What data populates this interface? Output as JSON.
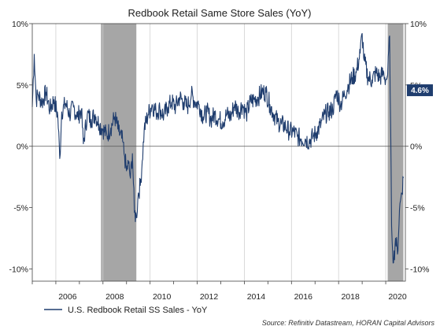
{
  "chart_data": {
    "type": "line",
    "title": "Redbook Retail Same Store Sales (YoY)",
    "y_unit": "%",
    "ylim": [
      -11,
      10
    ],
    "xlim": [
      "2005-01",
      "2020-11"
    ],
    "y_ticks": [
      10,
      5,
      0,
      -5,
      -10
    ],
    "y_tick_labels": [
      "10%",
      "5%",
      "0%",
      "-5%",
      "-10%"
    ],
    "x_ticks": [
      2006,
      2008,
      2010,
      2012,
      2014,
      2016,
      2018,
      2020
    ],
    "x_tick_labels": [
      "2006",
      "2008",
      "2010",
      "2012",
      "2014",
      "2016",
      "2018",
      "2020"
    ],
    "grid": "vertical",
    "recessions": [
      {
        "start": "2007-12",
        "end": "2009-06"
      },
      {
        "start": "2020-02",
        "end": "2020-10"
      }
    ],
    "callout": {
      "label": "4.6%",
      "value": 4.6
    },
    "legend_position": "bottom-left",
    "series": [
      {
        "name": "U.S. Redbook Retail SS Sales - YoY",
        "color": "#1f3d6e",
        "points": [
          [
            "2005-01",
            3.2
          ],
          [
            "2005-02",
            7.5
          ],
          [
            "2005-03",
            3.8
          ],
          [
            "2005-04",
            4.2
          ],
          [
            "2005-06",
            3.6
          ],
          [
            "2005-08",
            4.4
          ],
          [
            "2005-10",
            3.0
          ],
          [
            "2005-12",
            3.8
          ],
          [
            "2006-02",
            2.5
          ],
          [
            "2006-03",
            -1.0
          ],
          [
            "2006-04",
            2.8
          ],
          [
            "2006-06",
            3.5
          ],
          [
            "2006-08",
            2.6
          ],
          [
            "2006-10",
            3.2
          ],
          [
            "2006-12",
            2.4
          ],
          [
            "2007-02",
            3.0
          ],
          [
            "2007-03",
            0.2
          ],
          [
            "2007-05",
            2.6
          ],
          [
            "2007-07",
            2.2
          ],
          [
            "2007-09",
            2.6
          ],
          [
            "2007-11",
            1.8
          ],
          [
            "2008-01",
            1.4
          ],
          [
            "2008-03",
            0.9
          ],
          [
            "2008-05",
            1.5
          ],
          [
            "2008-07",
            2.4
          ],
          [
            "2008-09",
            1.2
          ],
          [
            "2008-11",
            0.4
          ],
          [
            "2008-12",
            -0.8
          ],
          [
            "2009-01",
            -2.0
          ],
          [
            "2009-02",
            -1.4
          ],
          [
            "2009-03",
            -2.6
          ],
          [
            "2009-04",
            -0.6
          ],
          [
            "2009-05",
            -5.4
          ],
          [
            "2009-06",
            -5.8
          ],
          [
            "2009-07",
            -3.8
          ],
          [
            "2009-08",
            -3.2
          ],
          [
            "2009-09",
            -1.2
          ],
          [
            "2009-10",
            1.4
          ],
          [
            "2009-12",
            2.6
          ],
          [
            "2010-02",
            3.4
          ],
          [
            "2010-04",
            2.8
          ],
          [
            "2010-06",
            3.0
          ],
          [
            "2010-08",
            2.5
          ],
          [
            "2010-10",
            3.2
          ],
          [
            "2010-12",
            3.6
          ],
          [
            "2011-02",
            3.2
          ],
          [
            "2011-04",
            4.0
          ],
          [
            "2011-06",
            3.6
          ],
          [
            "2011-08",
            3.2
          ],
          [
            "2011-10",
            4.2
          ],
          [
            "2011-12",
            3.6
          ],
          [
            "2012-02",
            3.4
          ],
          [
            "2012-04",
            2.4
          ],
          [
            "2012-06",
            2.8
          ],
          [
            "2012-08",
            2.2
          ],
          [
            "2012-10",
            2.6
          ],
          [
            "2012-12",
            2.2
          ],
          [
            "2013-02",
            2.0
          ],
          [
            "2013-04",
            2.6
          ],
          [
            "2013-06",
            2.4
          ],
          [
            "2013-08",
            3.4
          ],
          [
            "2013-10",
            2.8
          ],
          [
            "2013-12",
            3.4
          ],
          [
            "2014-02",
            2.6
          ],
          [
            "2014-04",
            3.6
          ],
          [
            "2014-06",
            3.8
          ],
          [
            "2014-08",
            4.0
          ],
          [
            "2014-10",
            4.4
          ],
          [
            "2014-12",
            4.4
          ],
          [
            "2015-02",
            3.4
          ],
          [
            "2015-04",
            2.6
          ],
          [
            "2015-06",
            2.0
          ],
          [
            "2015-08",
            1.8
          ],
          [
            "2015-10",
            1.6
          ],
          [
            "2015-12",
            1.2
          ],
          [
            "2016-02",
            1.2
          ],
          [
            "2016-04",
            0.8
          ],
          [
            "2016-06",
            0.6
          ],
          [
            "2016-08",
            0.6
          ],
          [
            "2016-10",
            0.4
          ],
          [
            "2016-12",
            0.8
          ],
          [
            "2017-02",
            1.2
          ],
          [
            "2017-04",
            1.8
          ],
          [
            "2017-06",
            2.6
          ],
          [
            "2017-08",
            2.8
          ],
          [
            "2017-10",
            3.0
          ],
          [
            "2017-12",
            4.4
          ],
          [
            "2018-02",
            3.4
          ],
          [
            "2018-04",
            4.2
          ],
          [
            "2018-06",
            5.0
          ],
          [
            "2018-08",
            5.6
          ],
          [
            "2018-10",
            6.0
          ],
          [
            "2018-12",
            7.6
          ],
          [
            "2019-01",
            9.2
          ],
          [
            "2019-02",
            7.0
          ],
          [
            "2019-04",
            5.6
          ],
          [
            "2019-06",
            5.4
          ],
          [
            "2019-08",
            6.0
          ],
          [
            "2019-10",
            5.6
          ],
          [
            "2019-12",
            6.0
          ],
          [
            "2020-01",
            5.4
          ],
          [
            "2020-02",
            5.8
          ],
          [
            "2020-03",
            9.0
          ],
          [
            "2020-04",
            -6.5
          ],
          [
            "2020-05",
            -9.5
          ],
          [
            "2020-06",
            -7.5
          ],
          [
            "2020-07",
            -8.8
          ],
          [
            "2020-08",
            -5.2
          ],
          [
            "2020-09",
            -3.8
          ],
          [
            "2020-10",
            -2.6
          ]
        ]
      }
    ]
  },
  "source_text": "Source: Refinitiv Datastream, HORAN Capital Advisors"
}
